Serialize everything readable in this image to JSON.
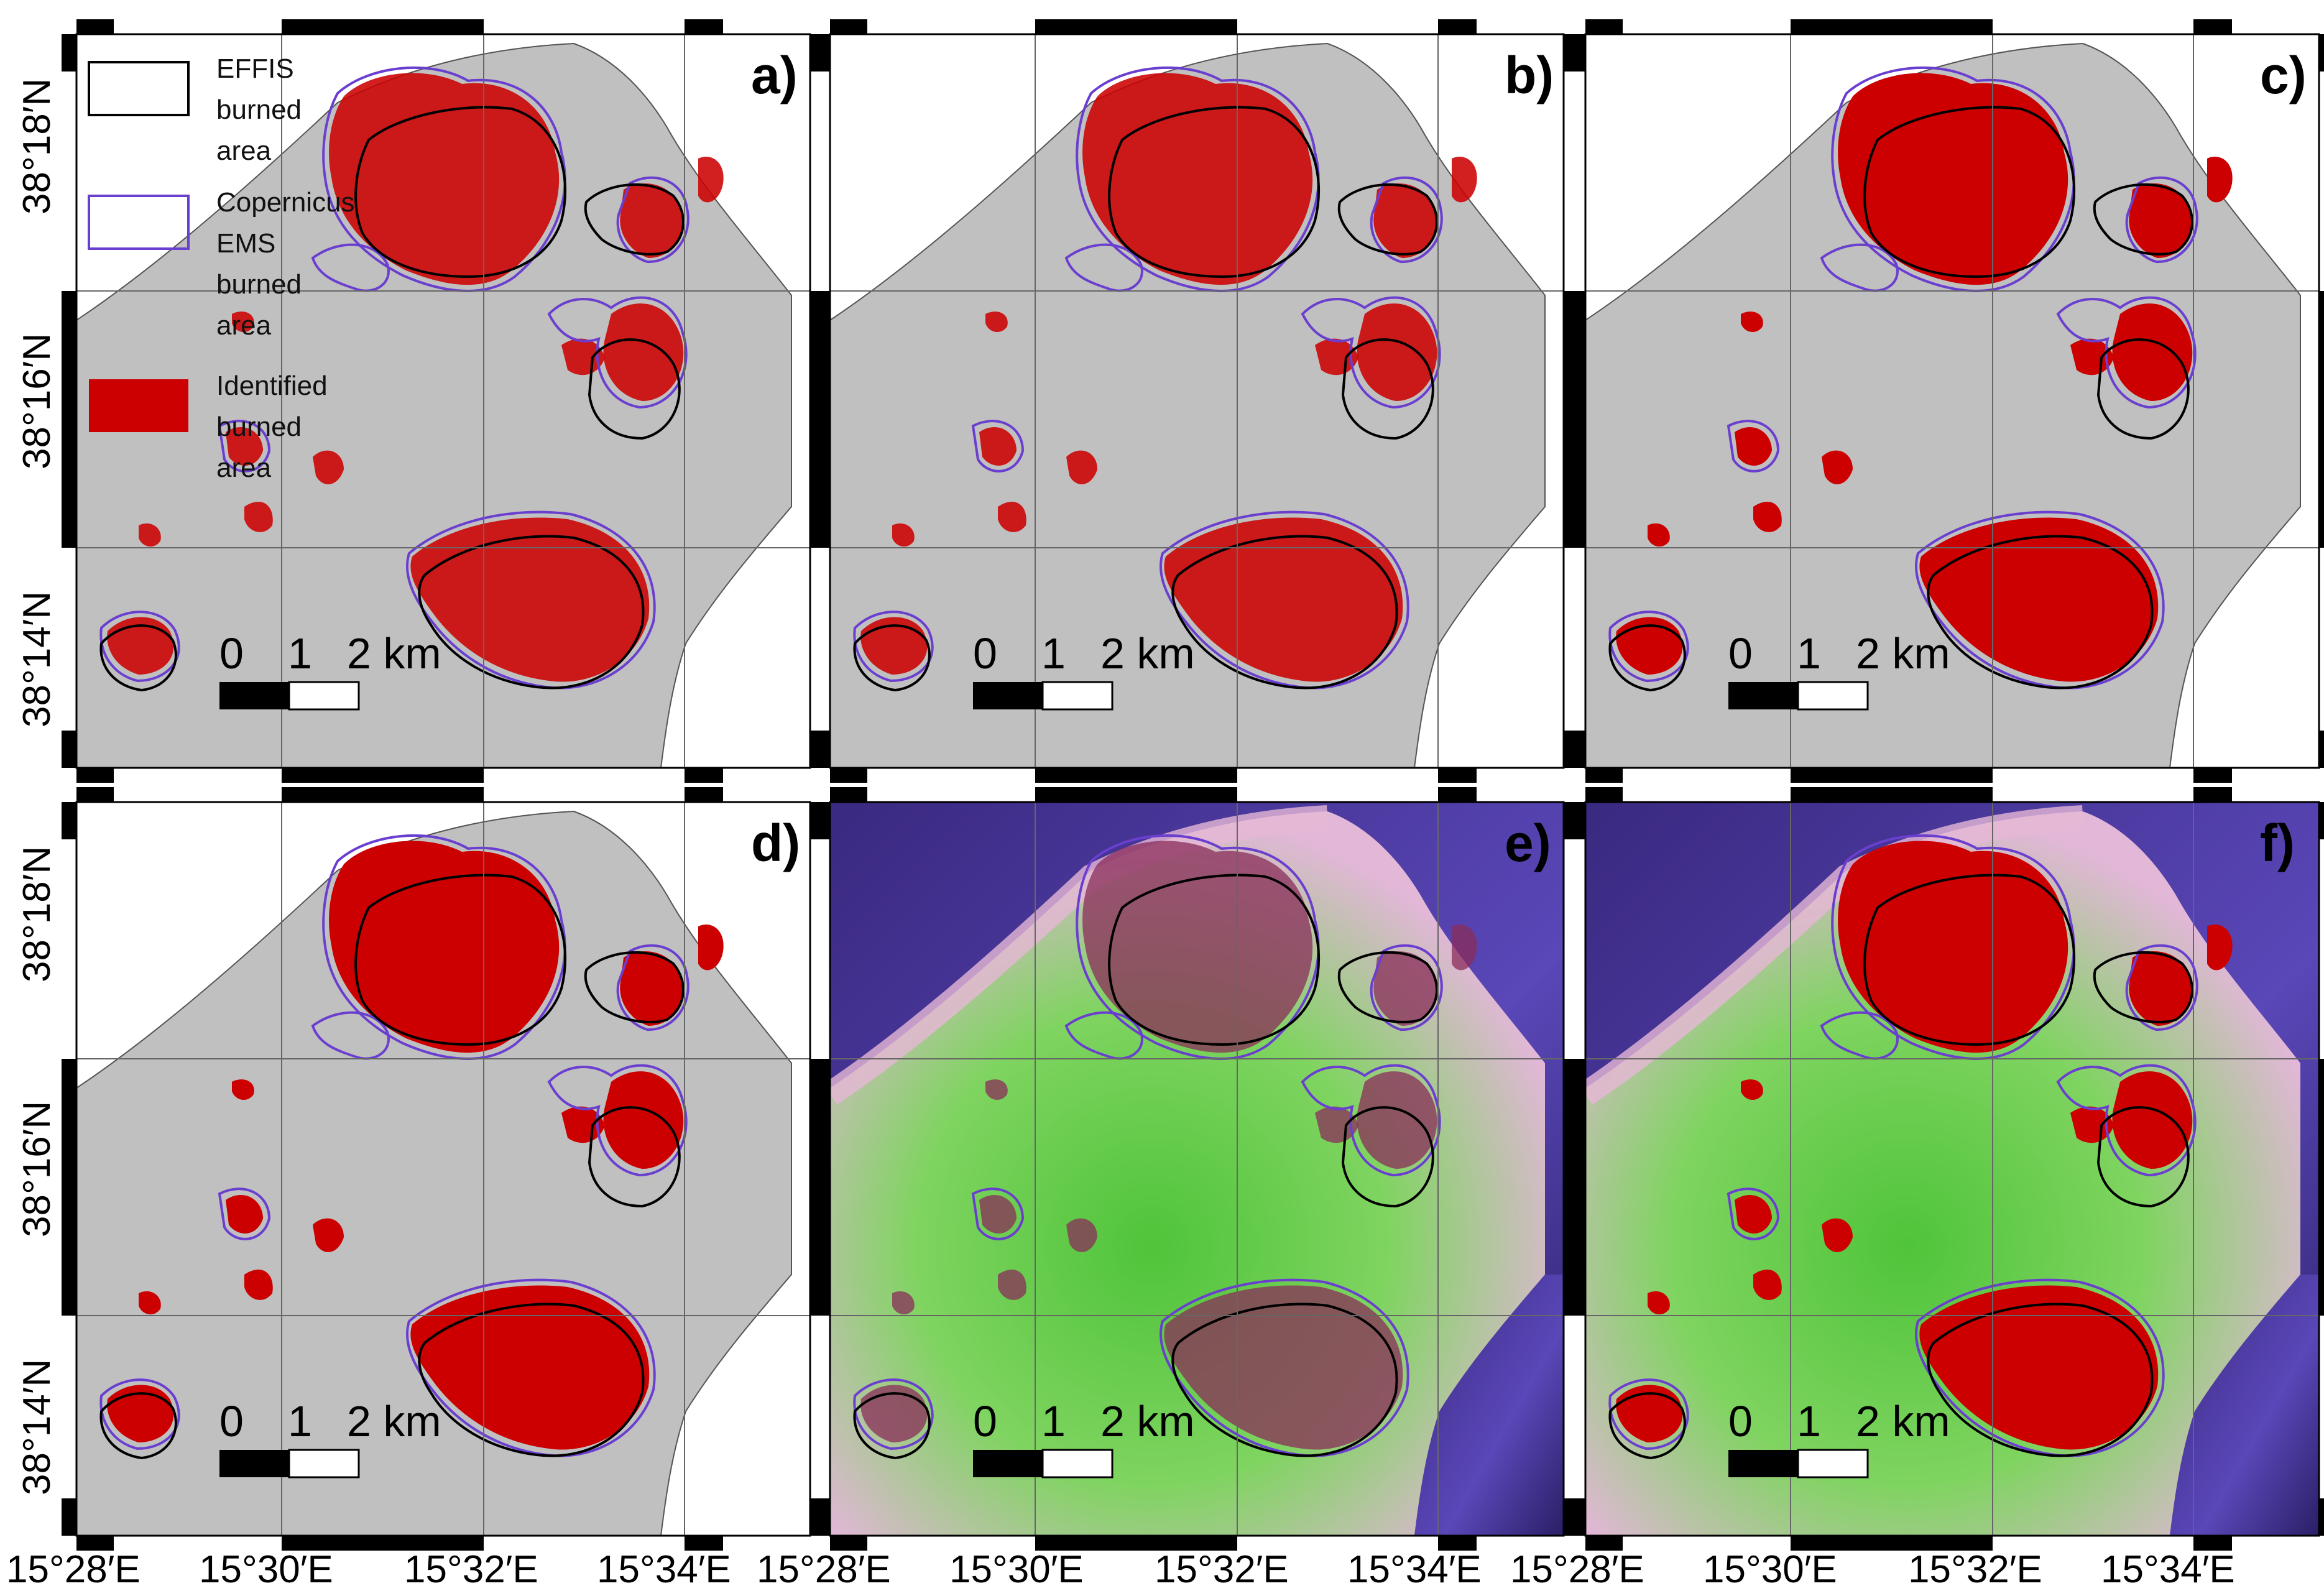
{
  "figure": {
    "lat_labels": [
      "38°18′N",
      "38°16′N",
      "38°14′N"
    ],
    "lon_labels": [
      "15°28′E",
      "15°30′E",
      "15°32′E",
      "15°34′E"
    ],
    "scale_bar": {
      "labels": [
        "0",
        "1",
        "2 km"
      ]
    }
  },
  "legend": {
    "items": [
      {
        "lines": [
          "EFFIS",
          "burned",
          "area"
        ],
        "symbol": "outline",
        "color": "#000000"
      },
      {
        "lines": [
          "Copernicus",
          "EMS",
          "burned",
          "area"
        ],
        "symbol": "outline",
        "color": "#6a3fcf"
      },
      {
        "lines": [
          "Identified",
          "burned",
          "area"
        ],
        "symbol": "fill",
        "color": "#cc0000"
      }
    ]
  },
  "panels": [
    {
      "letter": "a)",
      "background": "land",
      "burn_style": "partial"
    },
    {
      "letter": "b)",
      "background": "land",
      "burn_style": "partial"
    },
    {
      "letter": "c)",
      "background": "land",
      "burn_style": "full"
    },
    {
      "letter": "d)",
      "background": "land",
      "burn_style": "full"
    },
    {
      "letter": "e)",
      "background": "satellite",
      "burn_style": "none"
    },
    {
      "letter": "f)",
      "background": "satellite",
      "burn_style": "full"
    }
  ],
  "colors": {
    "land": "#c0c0c0",
    "burned": "#cc0000",
    "ems_outline": "#6a3fcf",
    "effis_outline": "#000000",
    "sea_dark": "#3c2a82",
    "vegetation": "#5ac83a",
    "bare": "#e6b8d6"
  }
}
